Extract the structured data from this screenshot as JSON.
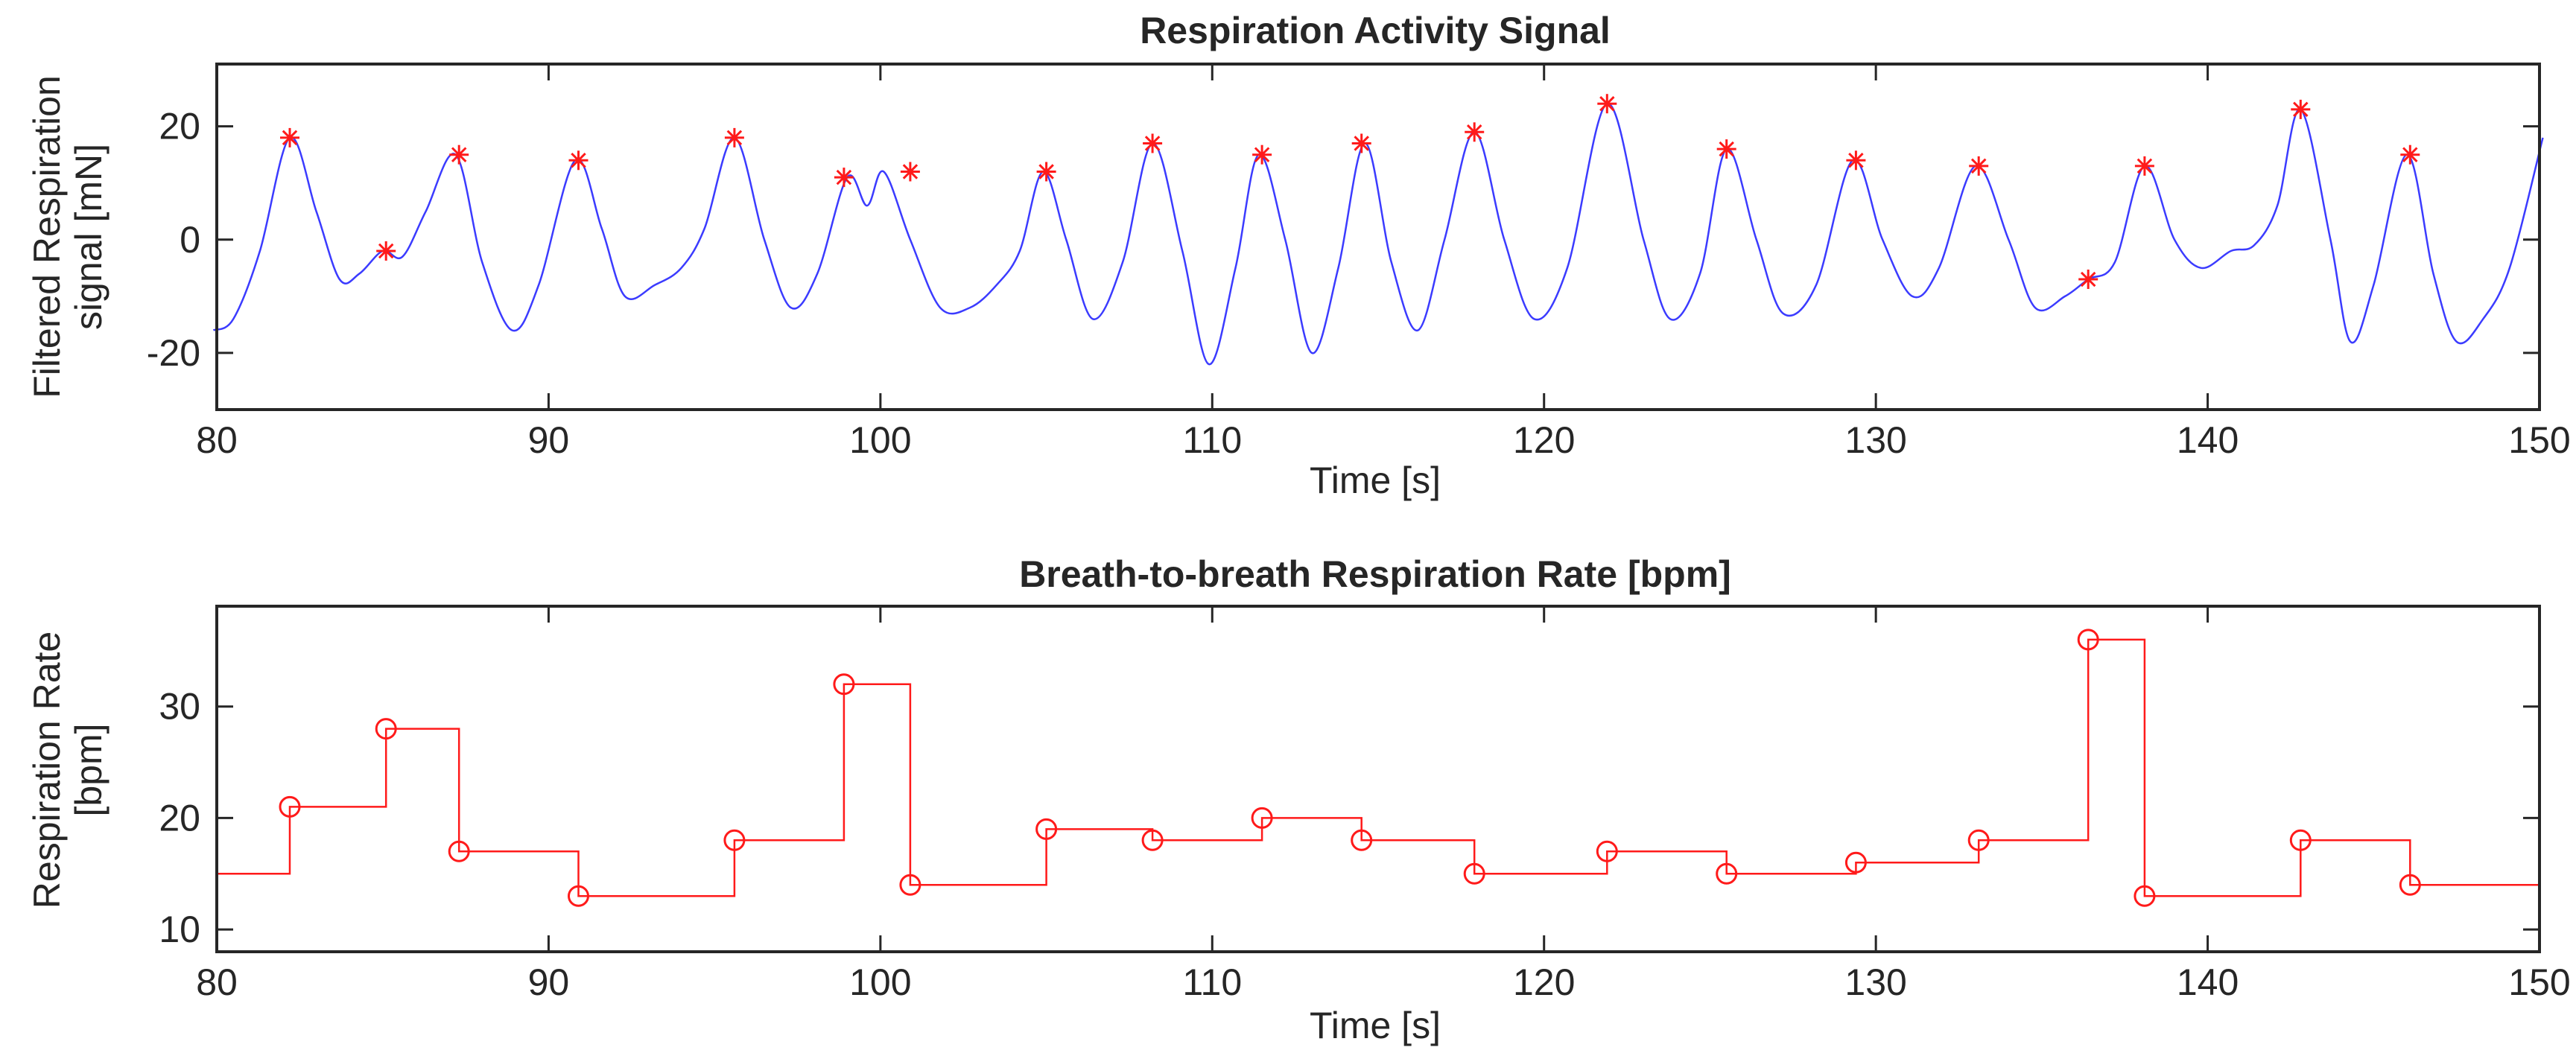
{
  "chart_data": [
    {
      "type": "line",
      "title": "Respiration Activity Signal",
      "xlabel": "Time [s]",
      "ylabel_lines": [
        "Filtered Respiration",
        "signal [mN]"
      ],
      "xlim": [
        80,
        150
      ],
      "ylim": [
        -30,
        31
      ],
      "xticks": [
        80,
        90,
        100,
        110,
        120,
        130,
        140,
        150
      ],
      "yticks": [
        -20,
        0,
        20
      ],
      "xtick_labels": [
        "80",
        "90",
        "100",
        "110",
        "120",
        "130",
        "140",
        "150"
      ],
      "ytick_labels": [
        "-20",
        "0",
        "20"
      ],
      "grid": false,
      "line_color": "#3b3bff",
      "marker_color": "#ff1a1a",
      "series": [
        {
          "name": "signal",
          "x": [
            79.9,
            80.5,
            81.3,
            82.2,
            83.0,
            83.7,
            84.3,
            85.0,
            85.6,
            86.3,
            87.2,
            88.0,
            88.9,
            89.7,
            90.8,
            91.6,
            92.3,
            93.2,
            94.0,
            94.7,
            95.6,
            96.5,
            97.3,
            98.1,
            99.0,
            99.6,
            100.1,
            100.9,
            101.8,
            102.7,
            103.5,
            104.2,
            104.9,
            105.6,
            106.4,
            107.3,
            108.2,
            109.1,
            109.9,
            110.7,
            111.4,
            112.2,
            113.0,
            113.8,
            114.6,
            115.4,
            116.2,
            117.0,
            117.9,
            118.8,
            119.7,
            120.7,
            121.9,
            123.0,
            123.8,
            124.7,
            125.5,
            126.4,
            127.2,
            128.2,
            129.3,
            130.2,
            131.1,
            131.9,
            133.0,
            134.0,
            134.8,
            135.7,
            136.4,
            137.2,
            138.1,
            139.0,
            139.8,
            140.7,
            141.4,
            142.1,
            142.8,
            143.7,
            144.3,
            145.0,
            146.0,
            146.8,
            147.5,
            148.3,
            149.1,
            150.1
          ],
          "y": [
            -16,
            -14,
            -2,
            18,
            5,
            -7,
            -6,
            -2,
            -3,
            5,
            15,
            -4,
            -16,
            -8,
            14,
            2,
            -10,
            -8,
            -5,
            2,
            18,
            0,
            -12,
            -6,
            11,
            6,
            12,
            0,
            -12,
            -12,
            -8,
            -2,
            12,
            0,
            -14,
            -4,
            17,
            -2,
            -22,
            -5,
            15,
            0,
            -20,
            -5,
            17,
            -4,
            -16,
            0,
            19,
            0,
            -14,
            -5,
            24,
            0,
            -14,
            -6,
            16,
            0,
            -13,
            -8,
            14,
            0,
            -10,
            -5,
            13,
            0,
            -12,
            -10,
            -7,
            -4,
            13,
            0,
            -5,
            -2,
            -1,
            6,
            23,
            0,
            -18,
            -8,
            15,
            -6,
            -18,
            -14,
            -5,
            18
          ]
        },
        {
          "name": "peaks",
          "x": [
            82.2,
            85.1,
            87.3,
            90.9,
            95.6,
            98.9,
            100.9,
            105.0,
            108.2,
            111.5,
            114.5,
            117.9,
            121.9,
            125.5,
            129.4,
            133.1,
            136.4,
            138.1,
            142.8,
            146.1
          ],
          "y": [
            18,
            -2,
            15,
            14,
            18,
            11,
            12,
            12,
            17,
            15,
            17,
            19,
            24,
            16,
            14,
            13,
            -7,
            13,
            23,
            15
          ]
        }
      ]
    },
    {
      "type": "line",
      "title": "Breath-to-breath Respiration Rate [bpm]",
      "xlabel": "Time [s]",
      "ylabel_lines": [
        "Respiration Rate",
        "[bpm]"
      ],
      "xlim": [
        80,
        150
      ],
      "ylim": [
        8,
        39
      ],
      "xticks": [
        80,
        90,
        100,
        110,
        120,
        130,
        140,
        150
      ],
      "yticks": [
        10,
        20,
        30
      ],
      "xtick_labels": [
        "80",
        "90",
        "100",
        "110",
        "120",
        "130",
        "140",
        "150"
      ],
      "ytick_labels": [
        "10",
        "20",
        "30"
      ],
      "grid": false,
      "line_color": "#ff1a1a",
      "series": [
        {
          "name": "rate",
          "step": "post",
          "initial_value": 15,
          "x": [
            82.2,
            85.1,
            87.3,
            90.9,
            95.6,
            98.9,
            100.9,
            105.0,
            108.2,
            111.5,
            114.5,
            117.9,
            121.9,
            125.5,
            129.4,
            133.1,
            136.4,
            138.1,
            142.8,
            146.1
          ],
          "y": [
            21,
            28,
            17,
            13,
            18,
            32,
            14,
            19,
            18,
            20,
            18,
            15,
            17,
            15,
            16,
            18,
            36,
            13,
            18,
            14
          ]
        }
      ]
    }
  ]
}
